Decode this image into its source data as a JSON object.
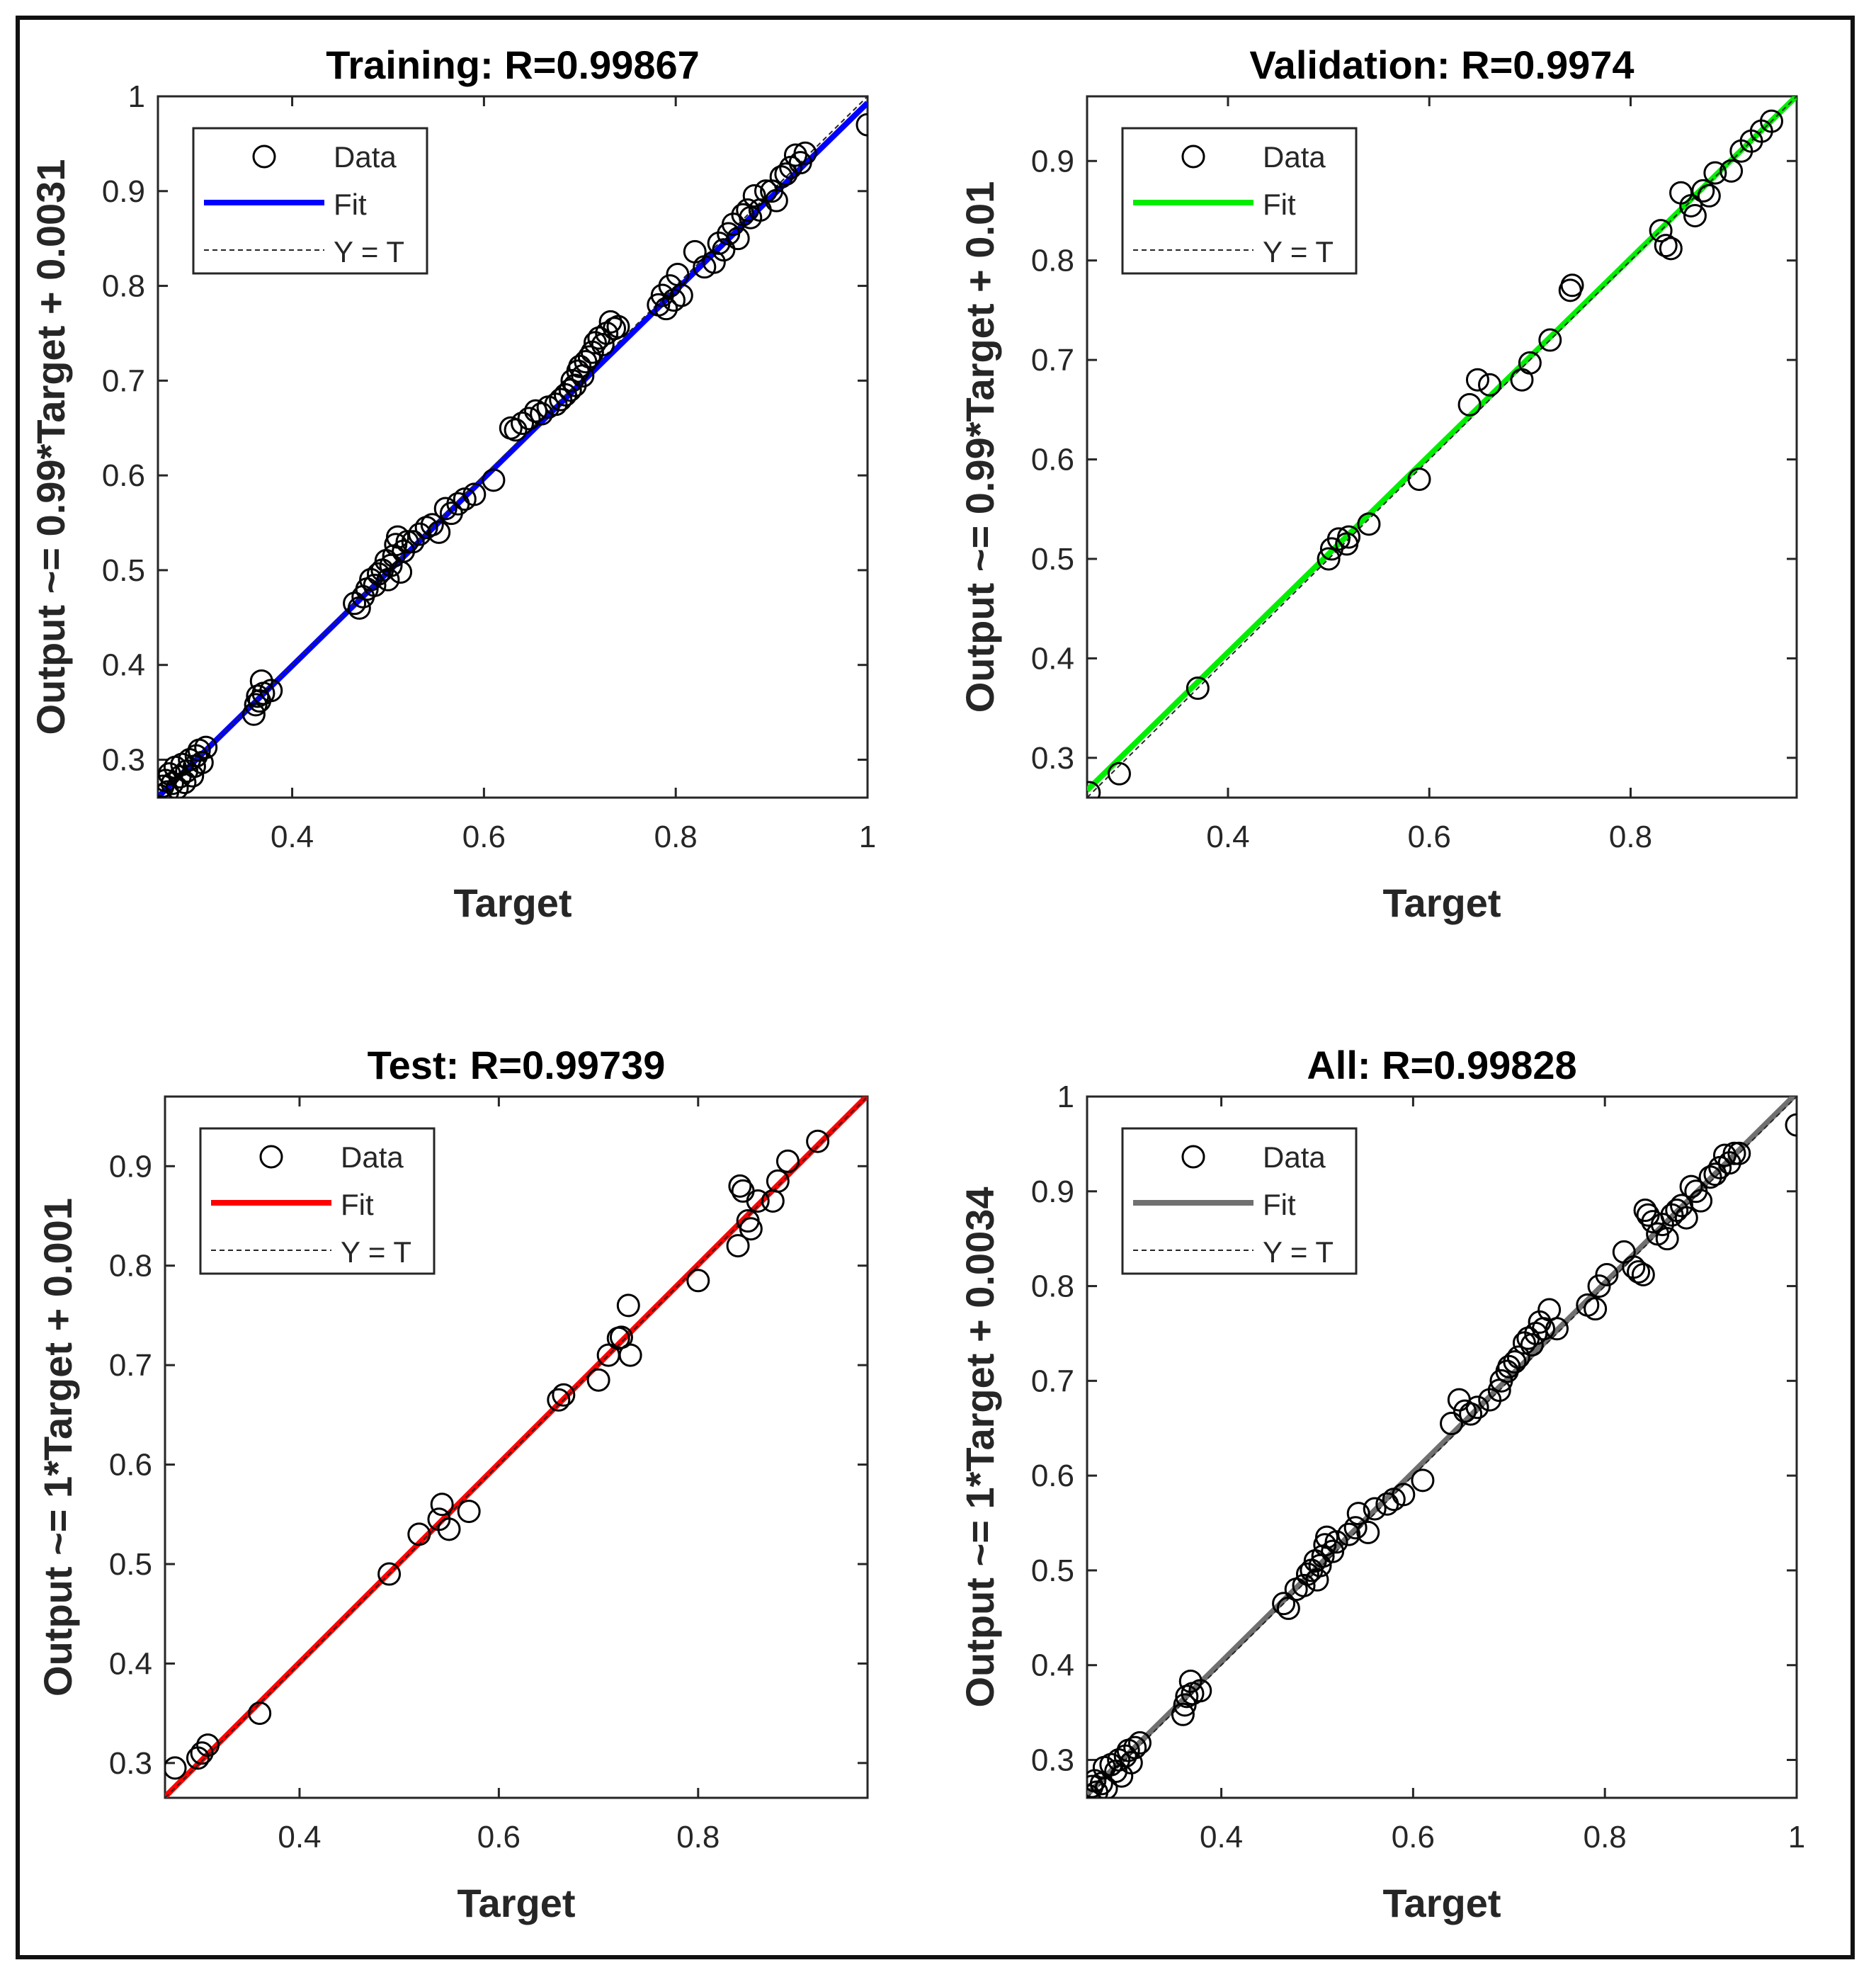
{
  "chart_data": [
    {
      "type": "scatter",
      "title": "Training: R=0.99867",
      "xlabel": "Target",
      "ylabel": "Output ~= 0.99*Target + 0.0031",
      "xlim": [
        0.26,
        1.0
      ],
      "ylim": [
        0.26,
        1.0
      ],
      "xticks": [
        0.4,
        0.6,
        0.8,
        1
      ],
      "xtick_labels": [
        "0.4",
        "0.6",
        "0.8",
        "1"
      ],
      "yticks": [
        0.3,
        0.4,
        0.5,
        0.6,
        0.7,
        0.8,
        0.9,
        1
      ],
      "ytick_labels": [
        "0.3",
        "0.4",
        "0.5",
        "0.6",
        "0.7",
        "0.8",
        "0.9",
        "1"
      ],
      "fit": {
        "slope": 0.99,
        "intercept": 0.0031,
        "color": "#0000ff"
      },
      "legend": {
        "position": "top-left",
        "entries": [
          "Data",
          "Fit",
          "Y = T"
        ]
      },
      "points": [
        [
          0.262,
          0.262
        ],
        [
          0.265,
          0.272
        ],
        [
          0.268,
          0.278
        ],
        [
          0.27,
          0.266
        ],
        [
          0.272,
          0.285
        ],
        [
          0.275,
          0.275
        ],
        [
          0.278,
          0.292
        ],
        [
          0.28,
          0.27
        ],
        [
          0.283,
          0.282
        ],
        [
          0.285,
          0.295
        ],
        [
          0.288,
          0.276
        ],
        [
          0.29,
          0.288
        ],
        [
          0.293,
          0.3
        ],
        [
          0.296,
          0.283
        ],
        [
          0.298,
          0.293
        ],
        [
          0.3,
          0.304
        ],
        [
          0.303,
          0.31
        ],
        [
          0.306,
          0.297
        ],
        [
          0.31,
          0.313
        ],
        [
          0.36,
          0.348
        ],
        [
          0.362,
          0.358
        ],
        [
          0.364,
          0.367
        ],
        [
          0.366,
          0.362
        ],
        [
          0.368,
          0.383
        ],
        [
          0.37,
          0.37
        ],
        [
          0.378,
          0.373
        ],
        [
          0.465,
          0.465
        ],
        [
          0.47,
          0.46
        ],
        [
          0.474,
          0.472
        ],
        [
          0.478,
          0.48
        ],
        [
          0.482,
          0.49
        ],
        [
          0.486,
          0.484
        ],
        [
          0.49,
          0.496
        ],
        [
          0.494,
          0.5
        ],
        [
          0.498,
          0.51
        ],
        [
          0.5,
          0.49
        ],
        [
          0.503,
          0.505
        ],
        [
          0.506,
          0.515
        ],
        [
          0.508,
          0.527
        ],
        [
          0.51,
          0.535
        ],
        [
          0.513,
          0.498
        ],
        [
          0.516,
          0.52
        ],
        [
          0.52,
          0.53
        ],
        [
          0.526,
          0.53
        ],
        [
          0.533,
          0.538
        ],
        [
          0.54,
          0.545
        ],
        [
          0.546,
          0.548
        ],
        [
          0.553,
          0.54
        ],
        [
          0.56,
          0.565
        ],
        [
          0.566,
          0.56
        ],
        [
          0.573,
          0.57
        ],
        [
          0.58,
          0.575
        ],
        [
          0.59,
          0.58
        ],
        [
          0.61,
          0.595
        ],
        [
          0.628,
          0.65
        ],
        [
          0.633,
          0.648
        ],
        [
          0.64,
          0.655
        ],
        [
          0.647,
          0.66
        ],
        [
          0.654,
          0.668
        ],
        [
          0.66,
          0.665
        ],
        [
          0.667,
          0.672
        ],
        [
          0.675,
          0.675
        ],
        [
          0.68,
          0.68
        ],
        [
          0.685,
          0.685
        ],
        [
          0.69,
          0.69
        ],
        [
          0.692,
          0.7
        ],
        [
          0.695,
          0.695
        ],
        [
          0.698,
          0.71
        ],
        [
          0.7,
          0.715
        ],
        [
          0.703,
          0.705
        ],
        [
          0.706,
          0.72
        ],
        [
          0.71,
          0.725
        ],
        [
          0.713,
          0.73
        ],
        [
          0.716,
          0.74
        ],
        [
          0.72,
          0.745
        ],
        [
          0.724,
          0.738
        ],
        [
          0.728,
          0.75
        ],
        [
          0.732,
          0.762
        ],
        [
          0.736,
          0.755
        ],
        [
          0.74,
          0.757
        ],
        [
          0.782,
          0.78
        ],
        [
          0.786,
          0.79
        ],
        [
          0.79,
          0.776
        ],
        [
          0.794,
          0.8
        ],
        [
          0.798,
          0.785
        ],
        [
          0.802,
          0.812
        ],
        [
          0.806,
          0.79
        ],
        [
          0.82,
          0.836
        ],
        [
          0.83,
          0.82
        ],
        [
          0.84,
          0.825
        ],
        [
          0.845,
          0.845
        ],
        [
          0.85,
          0.838
        ],
        [
          0.855,
          0.855
        ],
        [
          0.86,
          0.865
        ],
        [
          0.865,
          0.85
        ],
        [
          0.87,
          0.875
        ],
        [
          0.875,
          0.88
        ],
        [
          0.878,
          0.872
        ],
        [
          0.882,
          0.895
        ],
        [
          0.888,
          0.88
        ],
        [
          0.894,
          0.9
        ],
        [
          0.9,
          0.9
        ],
        [
          0.905,
          0.89
        ],
        [
          0.91,
          0.915
        ],
        [
          0.915,
          0.918
        ],
        [
          0.92,
          0.925
        ],
        [
          0.925,
          0.938
        ],
        [
          0.93,
          0.93
        ],
        [
          0.935,
          0.94
        ],
        [
          1.0,
          0.97
        ]
      ]
    },
    {
      "type": "scatter",
      "title": "Validation: R=0.9974",
      "xlabel": "Target",
      "ylabel": "Output ~= 0.99*Target + 0.01",
      "xlim": [
        0.26,
        0.965
      ],
      "ylim": [
        0.26,
        0.965
      ],
      "xticks": [
        0.4,
        0.6,
        0.8
      ],
      "xtick_labels": [
        "0.4",
        "0.6",
        "0.8"
      ],
      "yticks": [
        0.3,
        0.4,
        0.5,
        0.6,
        0.7,
        0.8,
        0.9
      ],
      "ytick_labels": [
        "0.3",
        "0.4",
        "0.5",
        "0.6",
        "0.7",
        "0.8",
        "0.9"
      ],
      "fit": {
        "slope": 0.99,
        "intercept": 0.01,
        "color": "#00ee00"
      },
      "legend": {
        "position": "top-left",
        "entries": [
          "Data",
          "Fit",
          "Y = T"
        ]
      },
      "points": [
        [
          0.262,
          0.265
        ],
        [
          0.292,
          0.284
        ],
        [
          0.37,
          0.37
        ],
        [
          0.5,
          0.5
        ],
        [
          0.503,
          0.51
        ],
        [
          0.51,
          0.52
        ],
        [
          0.518,
          0.515
        ],
        [
          0.52,
          0.522
        ],
        [
          0.54,
          0.535
        ],
        [
          0.59,
          0.58
        ],
        [
          0.64,
          0.655
        ],
        [
          0.648,
          0.68
        ],
        [
          0.66,
          0.675
        ],
        [
          0.692,
          0.68
        ],
        [
          0.7,
          0.697
        ],
        [
          0.72,
          0.72
        ],
        [
          0.74,
          0.77
        ],
        [
          0.742,
          0.775
        ],
        [
          0.83,
          0.83
        ],
        [
          0.835,
          0.815
        ],
        [
          0.84,
          0.812
        ],
        [
          0.85,
          0.868
        ],
        [
          0.86,
          0.855
        ],
        [
          0.864,
          0.845
        ],
        [
          0.872,
          0.87
        ],
        [
          0.878,
          0.865
        ],
        [
          0.884,
          0.888
        ],
        [
          0.9,
          0.89
        ],
        [
          0.91,
          0.91
        ],
        [
          0.92,
          0.92
        ],
        [
          0.93,
          0.93
        ],
        [
          0.94,
          0.94
        ]
      ]
    },
    {
      "type": "scatter",
      "title": "Test: R=0.99739",
      "xlabel": "Target",
      "ylabel": "Output ~= 1*Target + 0.001",
      "xlim": [
        0.265,
        0.97
      ],
      "ylim": [
        0.265,
        0.97
      ],
      "xticks": [
        0.4,
        0.6,
        0.8
      ],
      "xtick_labels": [
        "0.4",
        "0.6",
        "0.8"
      ],
      "yticks": [
        0.3,
        0.4,
        0.5,
        0.6,
        0.7,
        0.8,
        0.9
      ],
      "ytick_labels": [
        "0.3",
        "0.4",
        "0.5",
        "0.6",
        "0.7",
        "0.8",
        "0.9"
      ],
      "fit": {
        "slope": 1.0,
        "intercept": 0.001,
        "color": "#ff0000"
      },
      "legend": {
        "position": "top-left",
        "entries": [
          "Data",
          "Fit",
          "Y = T"
        ]
      },
      "points": [
        [
          0.275,
          0.295
        ],
        [
          0.298,
          0.305
        ],
        [
          0.302,
          0.31
        ],
        [
          0.308,
          0.318
        ],
        [
          0.36,
          0.35
        ],
        [
          0.49,
          0.49
        ],
        [
          0.52,
          0.53
        ],
        [
          0.54,
          0.545
        ],
        [
          0.543,
          0.56
        ],
        [
          0.55,
          0.535
        ],
        [
          0.57,
          0.553
        ],
        [
          0.66,
          0.665
        ],
        [
          0.665,
          0.67
        ],
        [
          0.7,
          0.685
        ],
        [
          0.71,
          0.71
        ],
        [
          0.72,
          0.727
        ],
        [
          0.723,
          0.728
        ],
        [
          0.73,
          0.76
        ],
        [
          0.732,
          0.71
        ],
        [
          0.8,
          0.785
        ],
        [
          0.84,
          0.82
        ],
        [
          0.842,
          0.88
        ],
        [
          0.845,
          0.875
        ],
        [
          0.85,
          0.845
        ],
        [
          0.853,
          0.837
        ],
        [
          0.86,
          0.865
        ],
        [
          0.875,
          0.865
        ],
        [
          0.88,
          0.885
        ],
        [
          0.89,
          0.905
        ],
        [
          0.92,
          0.925
        ]
      ]
    },
    {
      "type": "scatter",
      "title": "All: R=0.99828",
      "xlabel": "Target",
      "ylabel": "Output ~= 1*Target + 0.0034",
      "xlim": [
        0.26,
        1.0
      ],
      "ylim": [
        0.26,
        1.0
      ],
      "xticks": [
        0.4,
        0.6,
        0.8,
        1
      ],
      "xtick_labels": [
        "0.4",
        "0.6",
        "0.8",
        "1"
      ],
      "yticks": [
        0.3,
        0.4,
        0.5,
        0.6,
        0.7,
        0.8,
        0.9,
        1
      ],
      "ytick_labels": [
        "0.3",
        "0.4",
        "0.5",
        "0.6",
        "0.7",
        "0.8",
        "0.9",
        "1"
      ],
      "fit": {
        "slope": 1.0,
        "intercept": 0.0034,
        "color": "#707070"
      },
      "legend": {
        "position": "top-left",
        "entries": [
          "Data",
          "Fit",
          "Y = T"
        ]
      },
      "points": [
        [
          0.262,
          0.262
        ],
        [
          0.265,
          0.272
        ],
        [
          0.268,
          0.278
        ],
        [
          0.27,
          0.266
        ],
        [
          0.275,
          0.275
        ],
        [
          0.278,
          0.292
        ],
        [
          0.28,
          0.27
        ],
        [
          0.285,
          0.295
        ],
        [
          0.29,
          0.288
        ],
        [
          0.293,
          0.3
        ],
        [
          0.296,
          0.283
        ],
        [
          0.3,
          0.304
        ],
        [
          0.303,
          0.31
        ],
        [
          0.306,
          0.297
        ],
        [
          0.31,
          0.313
        ],
        [
          0.315,
          0.318
        ],
        [
          0.36,
          0.348
        ],
        [
          0.362,
          0.358
        ],
        [
          0.364,
          0.367
        ],
        [
          0.368,
          0.383
        ],
        [
          0.37,
          0.37
        ],
        [
          0.378,
          0.373
        ],
        [
          0.465,
          0.465
        ],
        [
          0.47,
          0.46
        ],
        [
          0.478,
          0.48
        ],
        [
          0.486,
          0.484
        ],
        [
          0.49,
          0.496
        ],
        [
          0.494,
          0.5
        ],
        [
          0.498,
          0.51
        ],
        [
          0.5,
          0.49
        ],
        [
          0.503,
          0.505
        ],
        [
          0.506,
          0.515
        ],
        [
          0.508,
          0.527
        ],
        [
          0.51,
          0.535
        ],
        [
          0.516,
          0.52
        ],
        [
          0.52,
          0.53
        ],
        [
          0.533,
          0.538
        ],
        [
          0.54,
          0.545
        ],
        [
          0.543,
          0.56
        ],
        [
          0.553,
          0.54
        ],
        [
          0.56,
          0.565
        ],
        [
          0.573,
          0.57
        ],
        [
          0.58,
          0.575
        ],
        [
          0.59,
          0.58
        ],
        [
          0.61,
          0.595
        ],
        [
          0.64,
          0.655
        ],
        [
          0.648,
          0.68
        ],
        [
          0.654,
          0.668
        ],
        [
          0.66,
          0.665
        ],
        [
          0.667,
          0.672
        ],
        [
          0.68,
          0.68
        ],
        [
          0.69,
          0.69
        ],
        [
          0.692,
          0.7
        ],
        [
          0.698,
          0.71
        ],
        [
          0.7,
          0.715
        ],
        [
          0.706,
          0.72
        ],
        [
          0.71,
          0.725
        ],
        [
          0.716,
          0.74
        ],
        [
          0.72,
          0.745
        ],
        [
          0.724,
          0.738
        ],
        [
          0.728,
          0.75
        ],
        [
          0.732,
          0.762
        ],
        [
          0.736,
          0.755
        ],
        [
          0.742,
          0.775
        ],
        [
          0.75,
          0.755
        ],
        [
          0.782,
          0.78
        ],
        [
          0.79,
          0.776
        ],
        [
          0.794,
          0.8
        ],
        [
          0.802,
          0.812
        ],
        [
          0.82,
          0.836
        ],
        [
          0.83,
          0.82
        ],
        [
          0.835,
          0.815
        ],
        [
          0.84,
          0.812
        ],
        [
          0.842,
          0.88
        ],
        [
          0.845,
          0.875
        ],
        [
          0.85,
          0.868
        ],
        [
          0.855,
          0.855
        ],
        [
          0.86,
          0.865
        ],
        [
          0.865,
          0.85
        ],
        [
          0.87,
          0.875
        ],
        [
          0.875,
          0.88
        ],
        [
          0.88,
          0.885
        ],
        [
          0.885,
          0.872
        ],
        [
          0.89,
          0.905
        ],
        [
          0.895,
          0.9
        ],
        [
          0.9,
          0.89
        ],
        [
          0.91,
          0.915
        ],
        [
          0.915,
          0.918
        ],
        [
          0.92,
          0.925
        ],
        [
          0.925,
          0.938
        ],
        [
          0.93,
          0.93
        ],
        [
          0.935,
          0.94
        ],
        [
          0.94,
          0.94
        ],
        [
          1.0,
          0.97
        ]
      ]
    }
  ]
}
